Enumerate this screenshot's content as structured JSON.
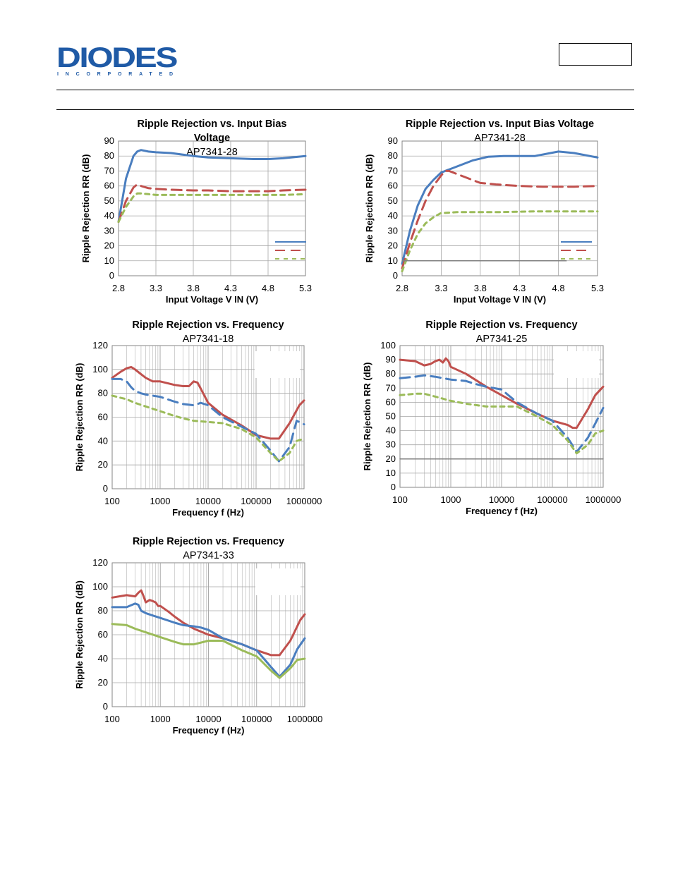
{
  "header": {
    "logo_text": "DIODES",
    "logo_subtext": "INCORPORATED",
    "brand_color": "#1f5aa6"
  },
  "colors": {
    "vin_blue": "#4a7ebf",
    "vin_red": "#c0504d",
    "vin_green": "#9bbb59",
    "grid": "#a6a6a6",
    "axis": "#868686"
  },
  "chart_data": [
    {
      "type": "line",
      "title": "Ripple Rejection vs. Input Bias Voltage",
      "subtitle": "AP7341-28",
      "xlabel": "Input Voltage V IN (V)",
      "ylabel": "Ripple Rejection RR (dB)",
      "xlim": [
        2.8,
        5.3
      ],
      "ylim": [
        0,
        90
      ],
      "xscale": "linear",
      "x_ticks": [
        "2.8",
        "3.3",
        "3.8",
        "4.3",
        "4.8",
        "5.3"
      ],
      "y_ticks": [
        "0",
        "10",
        "20",
        "30",
        "40",
        "50",
        "60",
        "70",
        "80",
        "90"
      ],
      "legend_position": "bottom-right",
      "grid": true,
      "series": [
        {
          "color": "#4a7ebf",
          "dash": "solid",
          "x": [
            2.8,
            2.9,
            3.0,
            3.05,
            3.1,
            3.2,
            3.3,
            3.5,
            3.8,
            4.0,
            4.3,
            4.6,
            4.8,
            5.0,
            5.3
          ],
          "y": [
            36,
            65,
            80,
            83,
            84,
            83,
            82.5,
            82,
            80,
            79,
            78.5,
            78,
            78,
            78.5,
            80
          ]
        },
        {
          "color": "#c0504d",
          "dash": "long",
          "x": [
            2.8,
            2.9,
            3.0,
            3.05,
            3.1,
            3.2,
            3.3,
            3.5,
            3.8,
            4.0,
            4.3,
            4.6,
            4.8,
            5.0,
            5.3
          ],
          "y": [
            36,
            50,
            59,
            61,
            60,
            58.5,
            58,
            57.5,
            57,
            57,
            56.5,
            56.5,
            56.5,
            57,
            57.5
          ]
        },
        {
          "color": "#9bbb59",
          "dash": "short",
          "x": [
            2.8,
            2.9,
            3.0,
            3.05,
            3.1,
            3.2,
            3.3,
            3.5,
            3.8,
            4.0,
            4.3,
            4.6,
            4.8,
            5.0,
            5.3
          ],
          "y": [
            36,
            46,
            53,
            55,
            55,
            54.5,
            54,
            54,
            54,
            54,
            54,
            54,
            54,
            54,
            54.5
          ]
        }
      ]
    },
    {
      "type": "line",
      "title": "Ripple Rejection vs. Input Bias Voltage",
      "subtitle": "AP7341-28",
      "xlabel": "Input Voltage V IN (V)",
      "ylabel": "Ripple Rejection RR (dB)",
      "xlim": [
        2.8,
        5.3
      ],
      "ylim": [
        0,
        90
      ],
      "xscale": "linear",
      "x_ticks": [
        "2.8",
        "3.3",
        "3.8",
        "4.3",
        "4.8",
        "5.3"
      ],
      "y_ticks": [
        "0",
        "10",
        "20",
        "30",
        "40",
        "50",
        "60",
        "70",
        "80",
        "90"
      ],
      "legend_position": "bottom-right",
      "grid": true,
      "series": [
        {
          "color": "#4a7ebf",
          "dash": "solid",
          "x": [
            2.8,
            2.9,
            3.0,
            3.1,
            3.2,
            3.3,
            3.5,
            3.7,
            3.9,
            4.1,
            4.3,
            4.5,
            4.7,
            4.8,
            5.0,
            5.3
          ],
          "y": [
            8,
            30,
            47,
            58,
            64,
            69,
            73,
            77,
            79.5,
            80,
            80,
            80,
            82,
            83,
            82,
            79
          ]
        },
        {
          "color": "#c0504d",
          "dash": "long",
          "x": [
            2.8,
            2.9,
            3.0,
            3.1,
            3.2,
            3.3,
            3.35,
            3.4,
            3.5,
            3.6,
            3.8,
            4.0,
            4.3,
            4.6,
            5.0,
            5.3
          ],
          "y": [
            5,
            22,
            37,
            50,
            60,
            67,
            70,
            70,
            68,
            66,
            62,
            61,
            60,
            59.5,
            59.5,
            60
          ]
        },
        {
          "color": "#9bbb59",
          "dash": "short",
          "x": [
            2.8,
            2.9,
            3.0,
            3.1,
            3.2,
            3.3,
            3.35,
            3.5,
            3.8,
            4.0,
            4.5,
            5.0,
            5.3
          ],
          "y": [
            3,
            17,
            28,
            35,
            39,
            42,
            42,
            42.5,
            42.5,
            42.5,
            43,
            43,
            43
          ]
        },
        {
          "color": "#808080",
          "dash": "solid",
          "x": [
            2.8,
            4.9
          ],
          "y": [
            10,
            10
          ]
        }
      ]
    },
    {
      "type": "line",
      "title": "Ripple Rejection vs. Frequency",
      "subtitle": "AP7341-18",
      "xlabel": "Frequency f (Hz)",
      "ylabel": "Ripple Rejection RR (dB)",
      "xlim": [
        100,
        1000000
      ],
      "ylim": [
        0,
        120
      ],
      "xscale": "log",
      "x_ticks": [
        "100",
        "1000",
        "10000",
        "100000",
        "1000000"
      ],
      "y_ticks": [
        "0",
        "20",
        "40",
        "60",
        "80",
        "100",
        "120"
      ],
      "legend_position": "top-right",
      "grid": true,
      "series": [
        {
          "color": "#c0504d",
          "dash": "solid",
          "x": [
            100,
            150,
            200,
            250,
            300,
            400,
            500,
            700,
            1000,
            2000,
            3000,
            4000,
            5000,
            6000,
            7000,
            10000,
            20000,
            50000,
            100000,
            200000,
            300000,
            500000,
            800000,
            1000000
          ],
          "y": [
            93,
            98,
            101,
            102,
            100,
            96,
            93,
            90,
            90,
            87,
            86,
            86,
            90,
            89,
            84,
            72,
            62,
            53,
            45,
            42,
            42,
            55,
            70,
            74
          ]
        },
        {
          "color": "#4a7ebf",
          "dash": "long",
          "x": [
            100,
            150,
            200,
            250,
            300,
            400,
            500,
            700,
            1000,
            2000,
            3000,
            5000,
            6000,
            7000,
            10000,
            20000,
            50000,
            100000,
            200000,
            300000,
            500000,
            700000,
            1000000
          ],
          "y": [
            92,
            92,
            90,
            85,
            82,
            80,
            79,
            78,
            77,
            73,
            71,
            70,
            71,
            72,
            70,
            60,
            52,
            46,
            32,
            23,
            35,
            57,
            54
          ]
        },
        {
          "color": "#9bbb59",
          "dash": "short",
          "x": [
            100,
            200,
            300,
            500,
            1000,
            2000,
            3000,
            5000,
            10000,
            20000,
            50000,
            100000,
            200000,
            300000,
            500000,
            700000,
            1000000
          ],
          "y": [
            78,
            75,
            72,
            69,
            65,
            61,
            59,
            57,
            56,
            55,
            50,
            43,
            30,
            23,
            30,
            40,
            42
          ]
        }
      ]
    },
    {
      "type": "line",
      "title": "Ripple Rejection vs. Frequency",
      "subtitle": "AP7341-25",
      "xlabel": "Frequency f (Hz)",
      "ylabel": "Ripple Rejection RR (dB)",
      "xlim": [
        100,
        1000000
      ],
      "ylim": [
        0,
        100
      ],
      "xscale": "log",
      "x_ticks": [
        "100",
        "1000",
        "10000",
        "100000",
        "1000000"
      ],
      "y_ticks": [
        "0",
        "10",
        "20",
        "30",
        "40",
        "50",
        "60",
        "70",
        "80",
        "90",
        "100"
      ],
      "legend_position": "top-right",
      "grid": true,
      "series": [
        {
          "color": "#c0504d",
          "dash": "solid",
          "x": [
            100,
            200,
            300,
            400,
            500,
            600,
            700,
            800,
            900,
            1000,
            2000,
            3000,
            5000,
            10000,
            20000,
            50000,
            100000,
            200000,
            250000,
            300000,
            500000,
            700000,
            1000000
          ],
          "y": [
            90,
            89,
            86,
            87,
            89,
            90,
            88,
            91,
            89,
            85,
            80,
            76,
            71,
            65,
            59,
            52,
            47,
            44,
            42,
            42,
            55,
            65,
            71
          ]
        },
        {
          "color": "#4a7ebf",
          "dash": "long",
          "x": [
            100,
            200,
            300,
            500,
            700,
            1000,
            2000,
            3000,
            5000,
            10000,
            20000,
            50000,
            100000,
            200000,
            300000,
            500000,
            700000,
            1000000
          ],
          "y": [
            77,
            78,
            79,
            78,
            77,
            76,
            75,
            73,
            71,
            69,
            60,
            52,
            47,
            35,
            25,
            35,
            45,
            56
          ]
        },
        {
          "color": "#9bbb59",
          "dash": "short",
          "x": [
            100,
            200,
            300,
            500,
            1000,
            2000,
            5000,
            10000,
            20000,
            50000,
            100000,
            200000,
            300000,
            500000,
            700000,
            1000000
          ],
          "y": [
            65,
            66,
            66,
            64,
            61,
            59,
            57,
            57,
            57,
            50,
            44,
            33,
            24,
            30,
            38,
            40
          ]
        },
        {
          "color": "#808080",
          "dash": "solid",
          "x": [
            100,
            1000000
          ],
          "y": [
            20,
            20
          ]
        }
      ]
    },
    {
      "type": "line",
      "title": "Ripple Rejection vs. Frequency",
      "subtitle": "AP7341-33",
      "xlabel": "Frequency f (Hz)",
      "ylabel": "Ripple Rejection RR (dB)",
      "xlim": [
        100,
        1000000
      ],
      "ylim": [
        0,
        120
      ],
      "xscale": "log",
      "x_ticks": [
        "100",
        "1000",
        "10000",
        "100000",
        "1000000"
      ],
      "y_ticks": [
        "0",
        "20",
        "40",
        "60",
        "80",
        "100",
        "120"
      ],
      "legend_position": "top-right",
      "grid": true,
      "series": [
        {
          "color": "#c0504d",
          "dash": "solid",
          "x": [
            100,
            200,
            300,
            350,
            400,
            450,
            500,
            600,
            700,
            800,
            900,
            1000,
            1500,
            2000,
            3000,
            5000,
            10000,
            20000,
            50000,
            100000,
            200000,
            300000,
            500000,
            800000,
            1000000
          ],
          "y": [
            91,
            93,
            92,
            95,
            97,
            92,
            87,
            89,
            88,
            87,
            84,
            84,
            79,
            75,
            70,
            65,
            60,
            57,
            52,
            47,
            43,
            43,
            55,
            72,
            77
          ]
        },
        {
          "color": "#4a7ebf",
          "dash": "solid",
          "x": [
            100,
            200,
            300,
            350,
            400,
            500,
            700,
            1000,
            2000,
            3000,
            5000,
            7000,
            10000,
            20000,
            50000,
            100000,
            200000,
            300000,
            500000,
            700000,
            1000000
          ],
          "y": [
            83,
            83,
            86,
            85,
            80,
            78,
            76,
            74,
            70,
            68,
            67,
            66,
            64,
            57,
            52,
            47,
            33,
            25,
            35,
            48,
            57
          ]
        },
        {
          "color": "#9bbb59",
          "dash": "solid",
          "x": [
            100,
            200,
            300,
            500,
            1000,
            2000,
            3000,
            5000,
            10000,
            20000,
            50000,
            100000,
            200000,
            300000,
            500000,
            700000,
            1000000
          ],
          "y": [
            69,
            68,
            65,
            62,
            58,
            54,
            52,
            52,
            55,
            55,
            47,
            42,
            30,
            24,
            32,
            39,
            40
          ]
        }
      ]
    }
  ]
}
